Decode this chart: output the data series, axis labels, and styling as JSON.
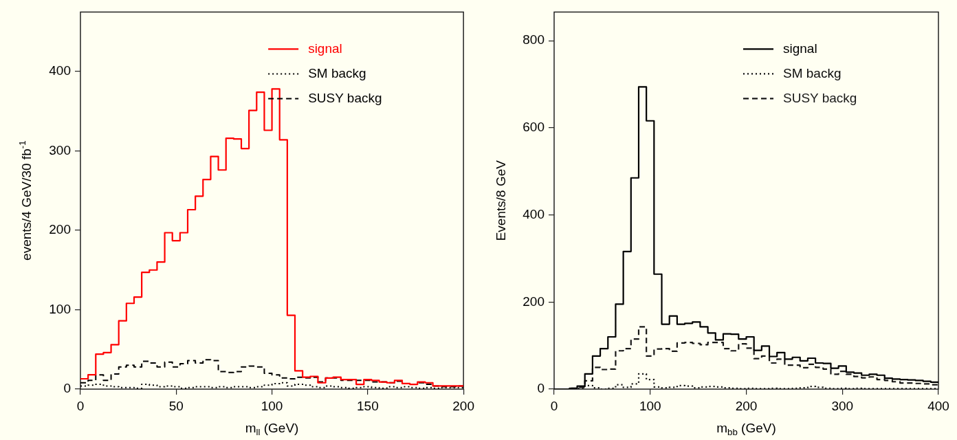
{
  "chart_data": [
    {
      "type": "histogram",
      "xlabel": "m$_{ll}$ (GeV)",
      "ylabel": "events/4 GeV/30 fb$^{-1}$",
      "legend": "top right",
      "grid": false,
      "bins": [
        0,
        4,
        8,
        12,
        16,
        20,
        24,
        28,
        32,
        36,
        40,
        44,
        48,
        52,
        56,
        60,
        64,
        68,
        72,
        76,
        80,
        84,
        88,
        92,
        96,
        100,
        104,
        108,
        112,
        116,
        120,
        124,
        128,
        132,
        136,
        140,
        144,
        148,
        152,
        156,
        160,
        164,
        168,
        172,
        176,
        180,
        184,
        188,
        192,
        196,
        200
      ],
      "xlim": [
        0,
        200
      ],
      "xticks": [
        0,
        50,
        100,
        150,
        200
      ],
      "ylim": [
        0,
        475
      ],
      "yticks": [
        0,
        100,
        200,
        300,
        400
      ],
      "series": [
        {
          "name": "signal",
          "color": "#ff0000",
          "line_style": "solid",
          "values": [
            13,
            18,
            44,
            46,
            56,
            86,
            108,
            116,
            147,
            150,
            160,
            197,
            187,
            197,
            226,
            243,
            264,
            293,
            276,
            316,
            315,
            303,
            351,
            374,
            326,
            378,
            314,
            93,
            23,
            15,
            16,
            8,
            14,
            15,
            12,
            12,
            6,
            12,
            11,
            9,
            8,
            11,
            7,
            6,
            9,
            8,
            4,
            4,
            4,
            4
          ]
        },
        {
          "name": "SM backg",
          "color": "#000000",
          "line_style": "dotted",
          "values": [
            4,
            5,
            6,
            4,
            3,
            2,
            2,
            1,
            6,
            5,
            3,
            4,
            3,
            1,
            2,
            3,
            3,
            2,
            3,
            2,
            3,
            3,
            2,
            3,
            5,
            7,
            8,
            4,
            6,
            5,
            3,
            2,
            4,
            3,
            2,
            1,
            2,
            3,
            2,
            1,
            3,
            2,
            3,
            2,
            1,
            2,
            1,
            2,
            2,
            2
          ]
        },
        {
          "name": "SUSY backg",
          "color": "#000000",
          "line_style": "dashed",
          "values": [
            8,
            11,
            18,
            11,
            19,
            28,
            30,
            28,
            35,
            33,
            28,
            34,
            28,
            32,
            36,
            33,
            37,
            36,
            22,
            21,
            22,
            28,
            29,
            28,
            20,
            18,
            14,
            13,
            15,
            14,
            15,
            9,
            14,
            14,
            11,
            11,
            11,
            11,
            9,
            9,
            8,
            10,
            7,
            6,
            8,
            6,
            4,
            3,
            3,
            4
          ]
        }
      ]
    },
    {
      "type": "histogram",
      "xlabel": "m$_{bb}$ (GeV)",
      "ylabel": "Events/8 GeV",
      "legend": "top right",
      "grid": false,
      "bins": [
        0,
        8,
        16,
        24,
        32,
        40,
        48,
        56,
        64,
        72,
        80,
        88,
        96,
        104,
        112,
        120,
        128,
        136,
        144,
        152,
        160,
        168,
        176,
        184,
        192,
        200,
        208,
        216,
        224,
        232,
        240,
        248,
        256,
        264,
        272,
        280,
        288,
        296,
        304,
        312,
        320,
        328,
        336,
        344,
        352,
        360,
        368,
        376,
        384,
        392,
        400
      ],
      "xlim": [
        0,
        400
      ],
      "xticks": [
        0,
        100,
        200,
        300,
        400
      ],
      "ylim": [
        0,
        866
      ],
      "yticks": [
        0,
        200,
        400,
        600,
        800
      ],
      "series": [
        {
          "name": "signal",
          "color": "#000000",
          "line_style": "solid",
          "values": [
            0,
            0,
            2,
            7,
            35,
            76,
            93,
            120,
            195,
            316,
            485,
            694,
            616,
            264,
            149,
            168,
            149,
            151,
            154,
            143,
            129,
            113,
            127,
            126,
            115,
            120,
            89,
            99,
            75,
            84,
            69,
            73,
            65,
            71,
            60,
            59,
            48,
            53,
            39,
            37,
            32,
            34,
            32,
            25,
            23,
            22,
            21,
            20,
            18,
            16
          ]
        },
        {
          "name": "SM backg",
          "color": "#0c0c0c",
          "line_style": "dotted",
          "values": [
            0,
            0,
            1,
            2,
            8,
            3,
            0,
            2,
            10,
            4,
            12,
            35,
            22,
            5,
            3,
            4,
            8,
            7,
            3,
            5,
            6,
            5,
            3,
            2,
            1,
            2,
            1,
            1,
            2,
            1,
            1,
            2,
            3,
            6,
            4,
            2,
            1,
            2,
            1,
            2,
            1,
            1,
            1,
            1,
            1,
            1,
            1,
            1,
            1,
            1
          ]
        },
        {
          "name": "SUSY backg",
          "color": "#181818",
          "line_style": "dashed",
          "values": [
            0,
            0,
            2,
            4,
            19,
            50,
            45,
            46,
            88,
            93,
            115,
            143,
            76,
            92,
            93,
            87,
            106,
            107,
            105,
            102,
            107,
            107,
            93,
            88,
            104,
            94,
            70,
            76,
            60,
            69,
            55,
            55,
            49,
            57,
            50,
            46,
            34,
            41,
            34,
            29,
            26,
            28,
            22,
            20,
            17,
            14,
            14,
            13,
            12,
            10
          ]
        }
      ]
    }
  ]
}
